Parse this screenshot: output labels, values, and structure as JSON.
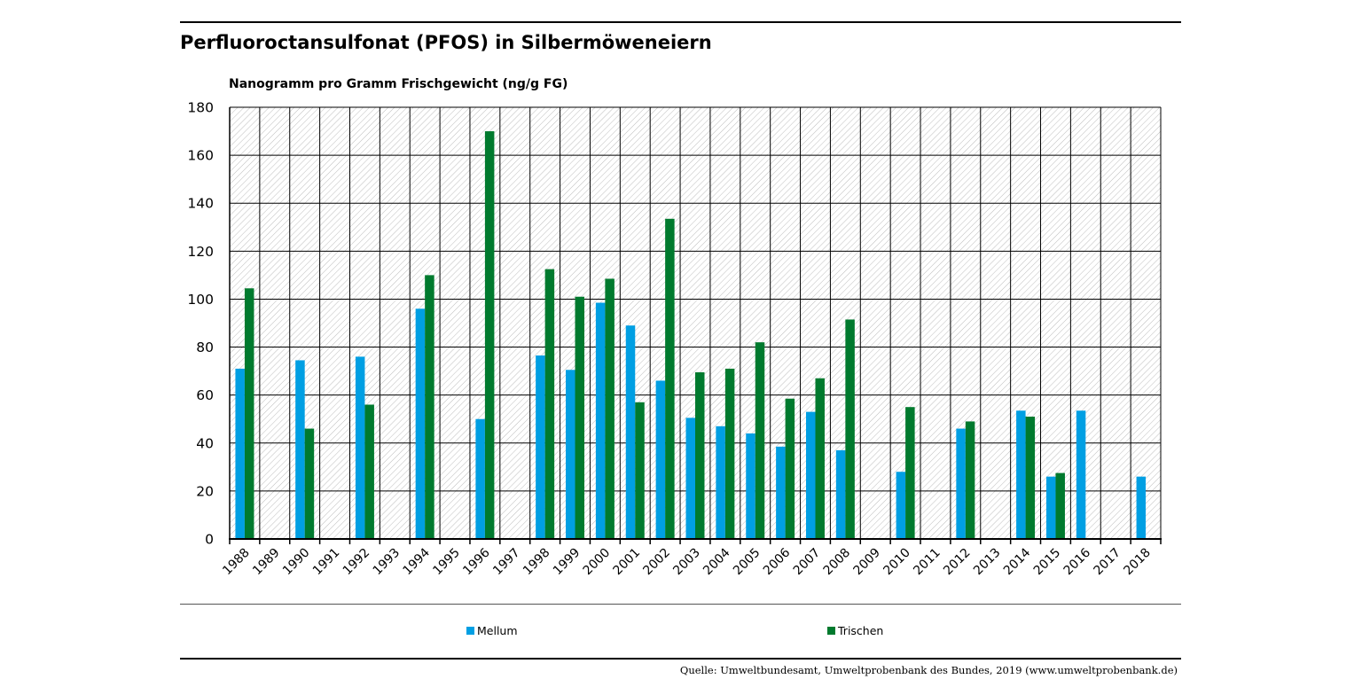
{
  "chart_data": {
    "type": "bar",
    "title": "Perfluoroctansulfonat (PFOS) in Silbermöweneiern",
    "ylabel": "Nanogramm pro Gramm Frischgewicht (ng/g FG)",
    "xlabel": "",
    "ylim": [
      0,
      180
    ],
    "yticks": [
      0,
      20,
      40,
      60,
      80,
      100,
      120,
      140,
      160,
      180
    ],
    "categories": [
      "1988",
      "1989",
      "1990",
      "1991",
      "1992",
      "1993",
      "1994",
      "1995",
      "1996",
      "1997",
      "1998",
      "1999",
      "2000",
      "2001",
      "2002",
      "2003",
      "2004",
      "2005",
      "2006",
      "2007",
      "2008",
      "2009",
      "2010",
      "2011",
      "2012",
      "2013",
      "2014",
      "2015",
      "2016",
      "2017",
      "2018"
    ],
    "series": [
      {
        "name": "Mellum",
        "color": "#009fe3",
        "values": [
          71,
          null,
          74.5,
          null,
          76,
          null,
          96,
          null,
          50,
          null,
          76.5,
          70.5,
          98.5,
          89,
          66,
          50.5,
          47,
          44,
          38.5,
          53,
          37,
          null,
          28,
          null,
          46,
          null,
          53.5,
          26,
          53.5,
          null,
          26
        ]
      },
      {
        "name": "Trischen",
        "color": "#007a2e",
        "values": [
          104.5,
          null,
          46,
          null,
          56,
          null,
          110,
          null,
          170,
          null,
          112.5,
          101,
          108.5,
          57,
          133.5,
          69.5,
          71,
          82,
          58.5,
          67,
          91.5,
          null,
          55,
          null,
          49,
          null,
          51,
          27.5,
          null,
          null,
          null
        ]
      }
    ],
    "legend_position": "bottom"
  },
  "source_text": "Quelle: Umweltbundesamt, Umweltprobenbank des Bundes, 2019 (www.umweltprobenbank.de)"
}
